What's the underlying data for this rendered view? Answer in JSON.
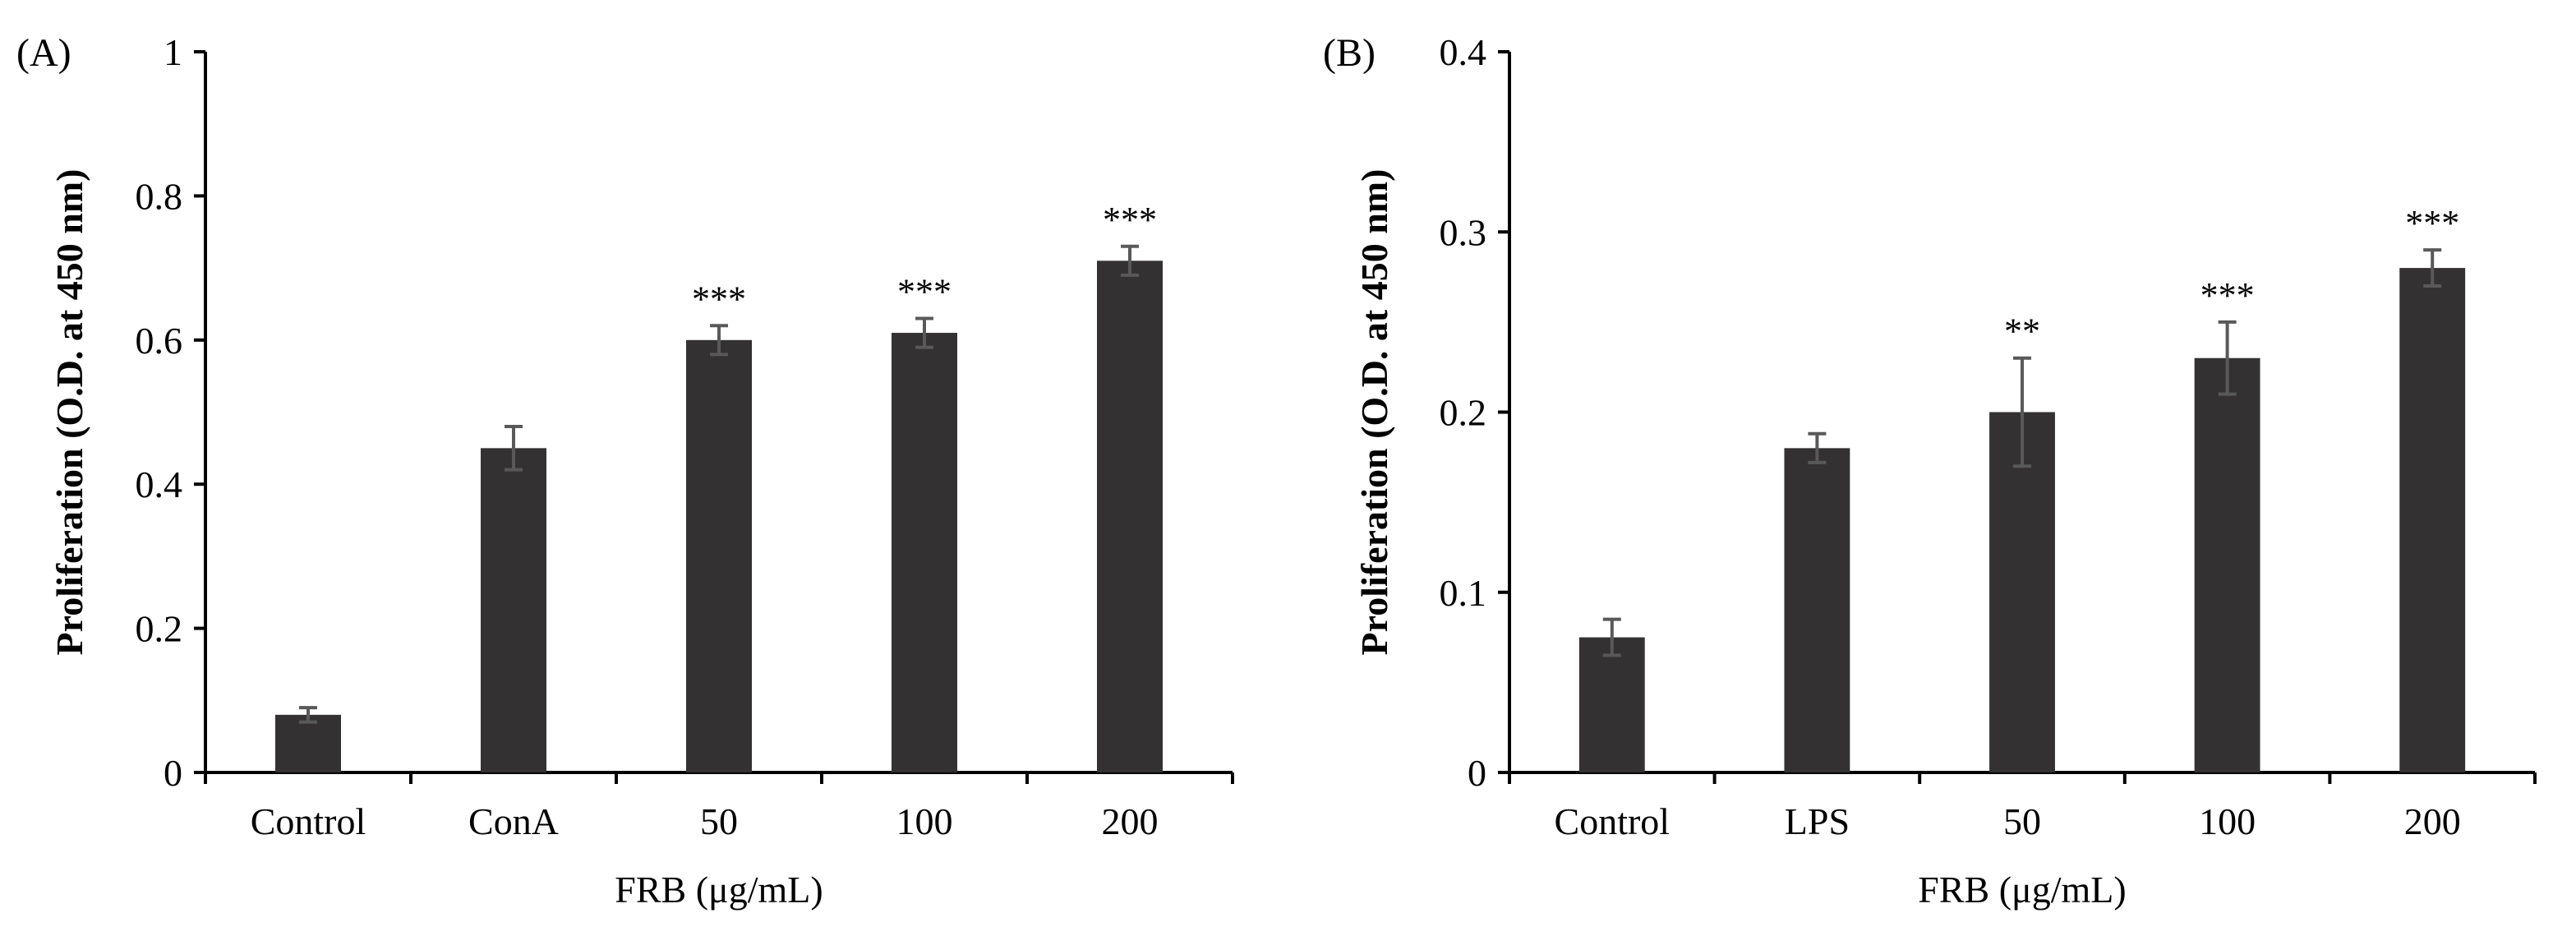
{
  "chart_data": [
    {
      "type": "bar",
      "panel_label": "(A)",
      "categories": [
        "Control",
        "ConA",
        "50",
        "100",
        "200"
      ],
      "values": [
        0.08,
        0.45,
        0.6,
        0.61,
        0.71
      ],
      "errors": [
        0.01,
        0.03,
        0.02,
        0.02,
        0.02
      ],
      "significance": [
        "",
        "",
        "***",
        "***",
        "***"
      ],
      "ylabel": "Proliferation (O.D. at 450 nm)",
      "xlabel": "FRB (μg/mL)",
      "ylim": [
        0,
        1
      ],
      "yticks": [
        0,
        0.2,
        0.4,
        0.6,
        0.8,
        1
      ],
      "ytick_labels": [
        "0",
        "0.2",
        "0.4",
        "0.6",
        "0.8",
        "1"
      ],
      "bar_color": "#333132",
      "error_color": "#595959"
    },
    {
      "type": "bar",
      "panel_label": "(B)",
      "categories": [
        "Control",
        "LPS",
        "50",
        "100",
        "200"
      ],
      "values": [
        0.075,
        0.18,
        0.2,
        0.23,
        0.28
      ],
      "errors": [
        0.01,
        0.008,
        0.03,
        0.02,
        0.01
      ],
      "significance": [
        "",
        "",
        "**",
        "***",
        "***"
      ],
      "ylabel": "Proliferation (O.D. at 450 nm)",
      "xlabel": "FRB (μg/mL)",
      "ylim": [
        0,
        0.4
      ],
      "yticks": [
        0,
        0.1,
        0.2,
        0.3,
        0.4
      ],
      "ytick_labels": [
        "0",
        "0.1",
        "0.2",
        "0.3",
        "0.4"
      ],
      "bar_color": "#333132",
      "error_color": "#595959"
    }
  ]
}
